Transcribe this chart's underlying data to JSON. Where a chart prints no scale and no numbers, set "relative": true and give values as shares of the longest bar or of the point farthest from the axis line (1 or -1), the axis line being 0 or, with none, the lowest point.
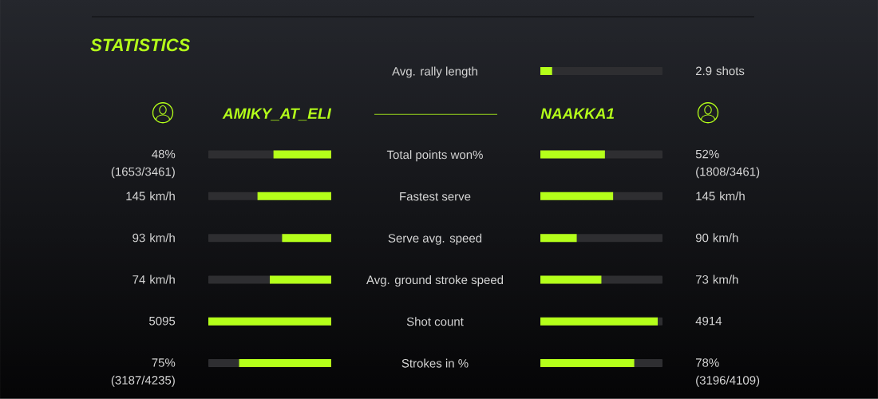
{
  "chart_data": [
    {
      "type": "bar",
      "orientation": "horizontal",
      "relative": true,
      "title": "STATISTICS",
      "categories": [
        "Avg. rally length",
        "Total points won%",
        "Fastest serve",
        "Serve avg. speed",
        "Avg. ground stroke speed",
        "Shot count",
        "Strokes in %"
      ],
      "series": [
        {
          "name": "AMIKY_AT_ELI",
          "color": "#b4ff1a",
          "values": [
            null,
            0.47,
            0.6,
            0.4,
            0.5,
            1,
            0.75
          ]
        }
      ],
      "annotations": [
        "48% (1653/3461)",
        "145 km/h",
        "93 km/h",
        "74 km/h",
        "5095",
        "75% (3187/4235)"
      ]
    },
    {
      "type": "bar",
      "orientation": "horizontal",
      "relative": true,
      "categories": [
        null,
        null,
        null,
        null,
        null,
        null,
        null
      ],
      "series": [
        {
          "name": "NAAKKA1",
          "color": "#b4ff1a",
          "values": [
            0.1,
            0.55,
            0.62,
            0.31,
            0.52,
            1,
            0.8
          ]
        }
      ],
      "annotations": [
        "2.9 shots",
        "52% (1808/3461)",
        "145 km/h",
        "90 km/h",
        "73 km/h",
        "4914",
        "78% (3196/4109)"
      ]
    }
  ]
}
